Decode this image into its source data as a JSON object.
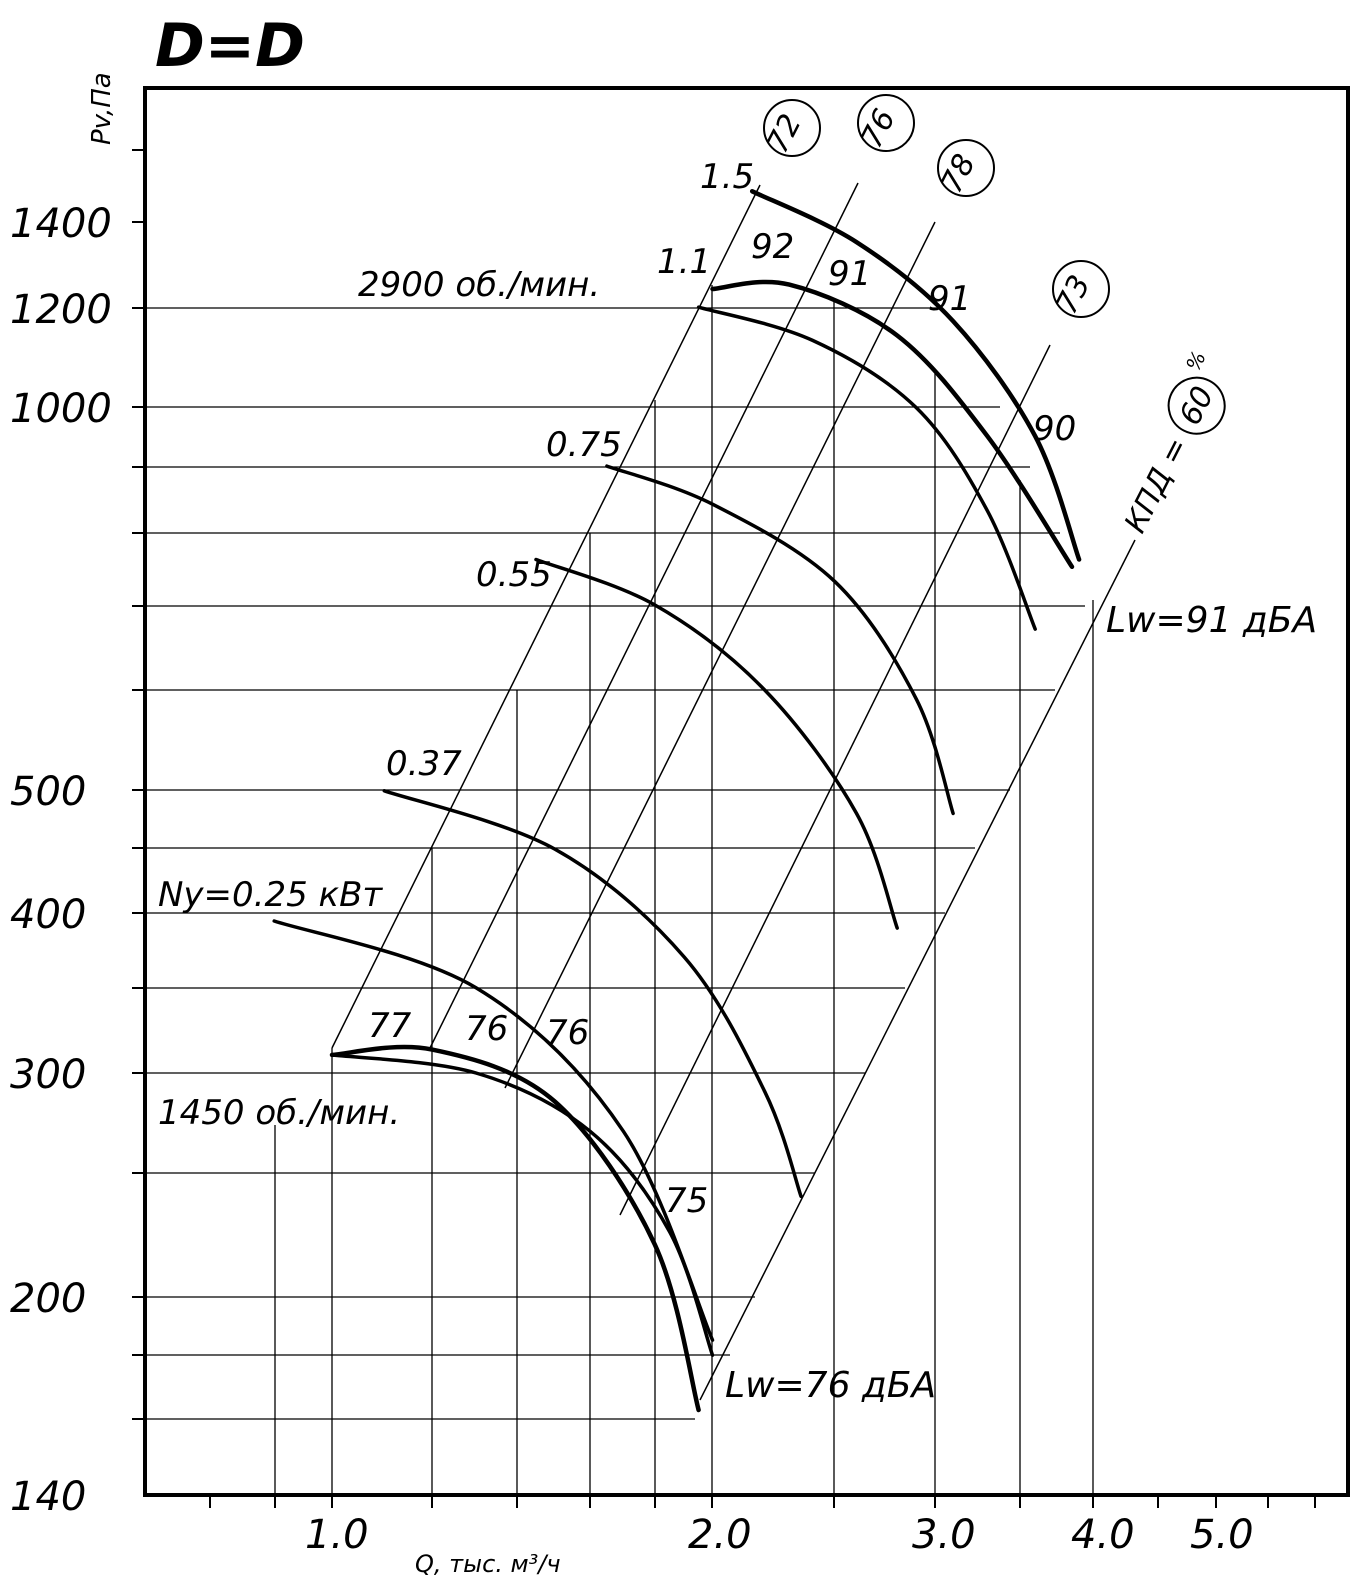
{
  "chart_data": {
    "type": "line",
    "title": "D=D",
    "ylabel": "Pv,Па",
    "xlabel": "Q, тыс. м³/ч",
    "xscale": "log",
    "yscale": "log",
    "xlim": [
      0.5,
      5.8
    ],
    "ylim": [
      140,
      1600
    ],
    "x_ticks": [
      "1.0",
      "2.0",
      "3.0",
      "4.0",
      "5.0"
    ],
    "y_ticks": [
      "140",
      "200",
      "300",
      "400",
      "500",
      "1000",
      "1200",
      "1400"
    ],
    "speed_labels": [
      "2900 об./мин.",
      "1450 об./мин."
    ],
    "power_prefix": "Ny=",
    "power_unit": " кВт",
    "efficiency_label": "КПД =",
    "efficiency_unit": "%",
    "efficiency_circles": [
      "72",
      "76",
      "78",
      "73",
      "60"
    ],
    "noise_labels": [
      "Lw=91 дБА",
      "Lw=76 дБА"
    ],
    "noise_numbers": [
      "92",
      "91",
      "91",
      "90",
      "77",
      "76",
      "76",
      "75"
    ],
    "series": [
      {
        "name": "1.5",
        "rpm": 2900,
        "x": [
          2.15,
          2.6,
          3.1,
          3.6,
          3.9
        ],
        "y": [
          1480,
          1350,
          1170,
          950,
          760
        ]
      },
      {
        "name": "1.1",
        "rpm": 2900,
        "x": [
          2.0,
          2.3,
          2.8,
          3.3,
          3.85
        ],
        "y": [
          1240,
          1250,
          1140,
          950,
          750
        ]
      },
      {
        "name": "",
        "rpm": 2900,
        "x": [
          1.95,
          2.4,
          2.9,
          3.3,
          3.6
        ],
        "y": [
          1200,
          1130,
          1000,
          830,
          670
        ]
      },
      {
        "name": "0.75",
        "rpm": 2900,
        "x": [
          1.65,
          2.0,
          2.5,
          2.9,
          3.1
        ],
        "y": [
          900,
          840,
          730,
          590,
          480
        ]
      },
      {
        "name": "0.55",
        "rpm": 2900,
        "x": [
          1.45,
          1.8,
          2.2,
          2.6,
          2.8
        ],
        "y": [
          760,
          700,
          600,
          480,
          390
        ]
      },
      {
        "name": "0.37",
        "rpm": 2900,
        "x": [
          1.1,
          1.5,
          1.9,
          2.2,
          2.35
        ],
        "y": [
          500,
          450,
          370,
          290,
          240
        ]
      },
      {
        "name": "0.25",
        "rpm": 2900,
        "x": [
          0.9,
          1.3,
          1.7,
          2.0
        ],
        "y": [
          395,
          350,
          270,
          185
        ]
      },
      {
        "name": "",
        "rpm": 1450,
        "x": [
          1.0,
          1.2,
          1.5,
          1.8,
          1.95
        ],
        "y": [
          310,
          313,
          285,
          220,
          163
        ]
      },
      {
        "name": "",
        "rpm": 1450,
        "x": [
          1.0,
          1.3,
          1.6,
          1.85,
          2.0
        ],
        "y": [
          310,
          300,
          270,
          225,
          180
        ]
      }
    ]
  }
}
